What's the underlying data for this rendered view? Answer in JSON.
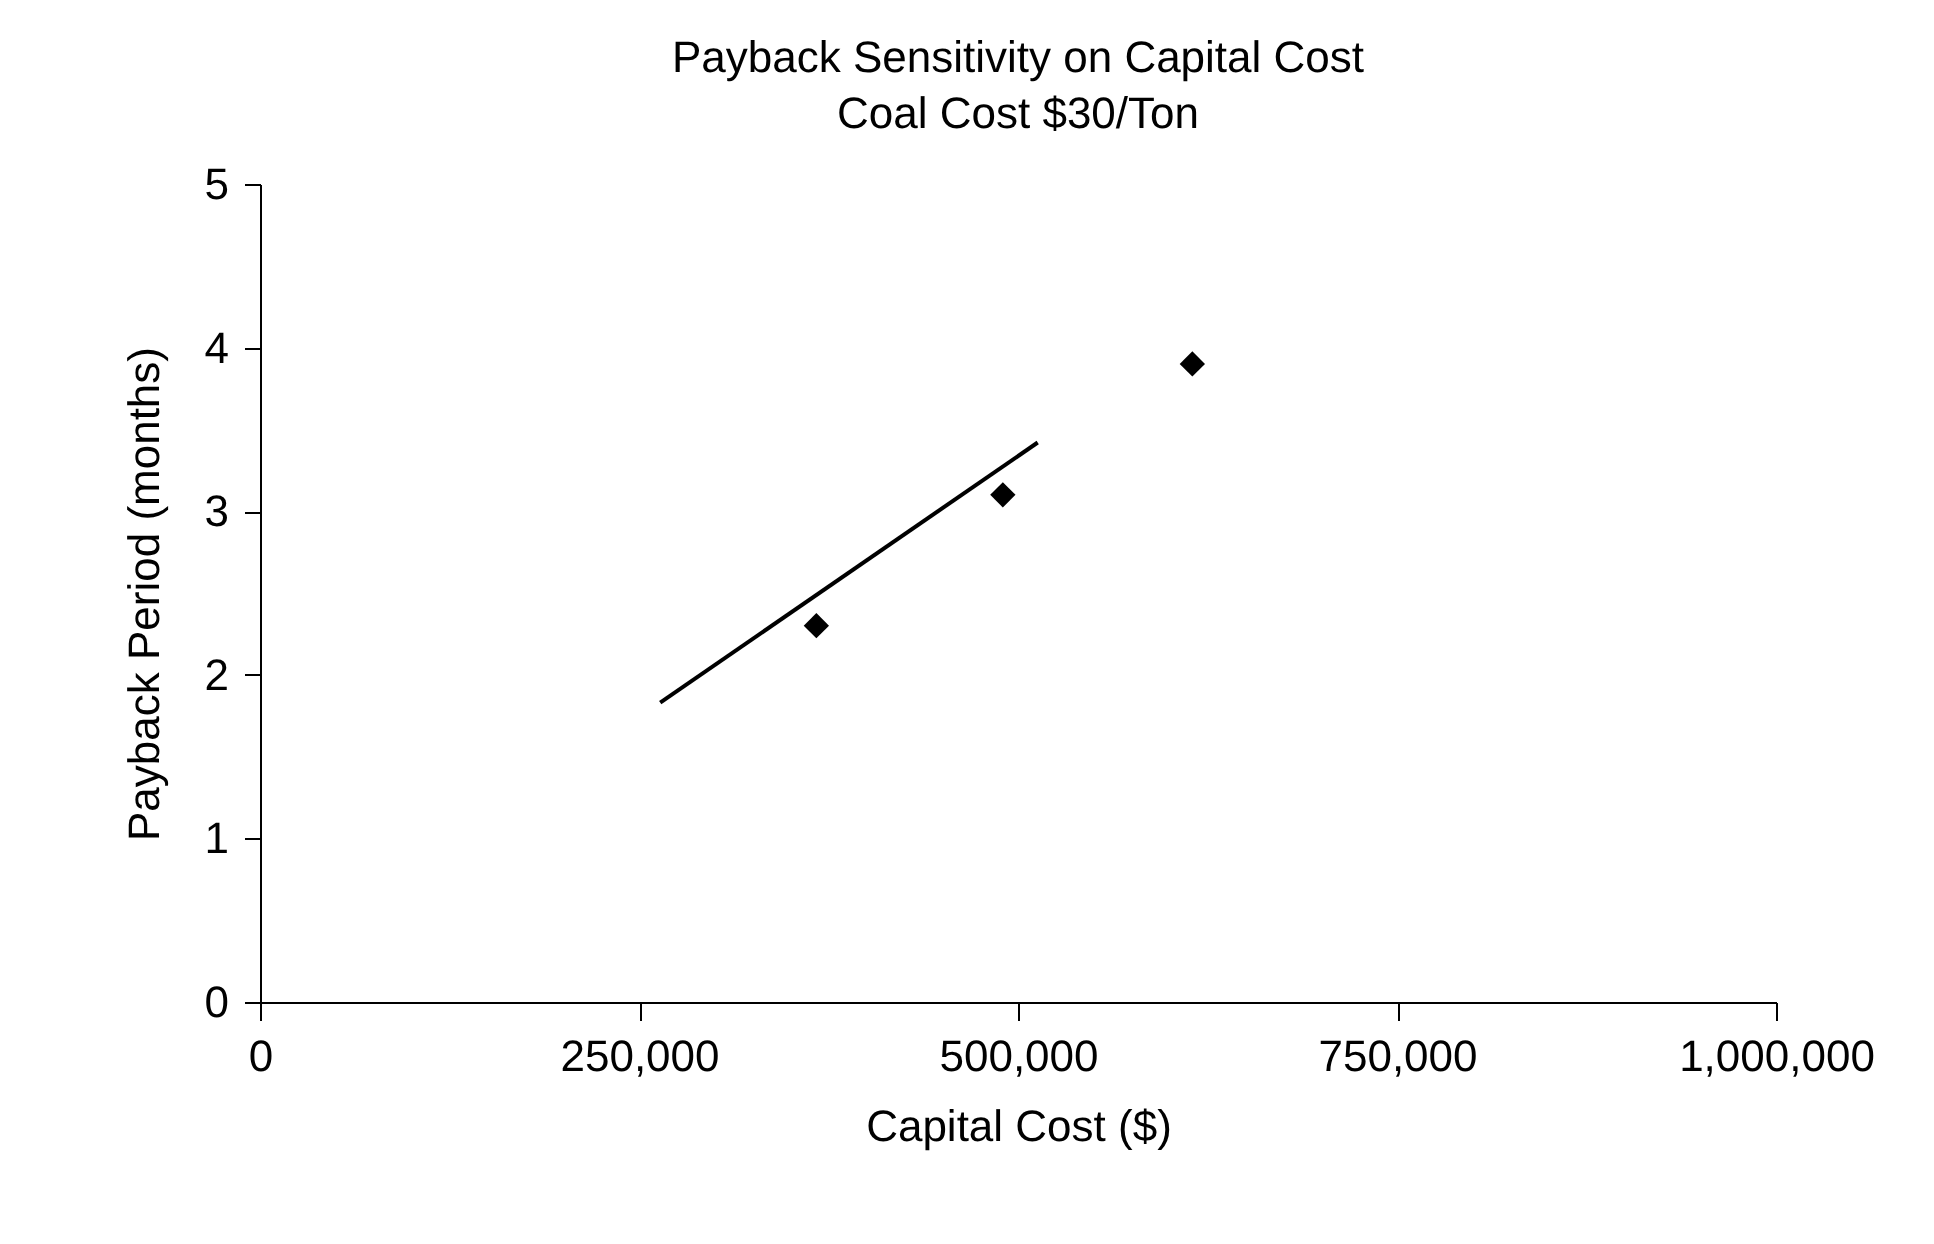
{
  "chart_data": {
    "type": "scatter",
    "title": "Payback Sensitivity on Capital Cost",
    "subtitle": "Coal Cost $30/Ton",
    "xlabel": "Capital Cost ($)",
    "ylabel": "Payback Period (months)",
    "marker": "diamond",
    "xlim": [
      0,
      1000000
    ],
    "xticks": [
      {
        "value": 0,
        "label": "0"
      },
      {
        "value": 250000,
        "label": "250,000"
      },
      {
        "value": 500000,
        "label": "500,000"
      },
      {
        "value": 750000,
        "label": "750,000"
      },
      {
        "value": 1000000,
        "label": "1,000,000"
      }
    ],
    "ylim": [
      0,
      5
    ],
    "yticks": [
      0,
      1,
      2,
      3,
      4,
      5
    ],
    "series": [
      {
        "color": "#000000",
        "x": [
          367000,
          490000,
          615000
        ],
        "values": [
          2.3,
          3.1,
          3.9
        ]
      },
      {
        "type": "line",
        "marker": "none",
        "color": "#000000",
        "x": [
          264000,
          513000
        ],
        "values": [
          1.83,
          3.42
        ]
      }
    ]
  }
}
